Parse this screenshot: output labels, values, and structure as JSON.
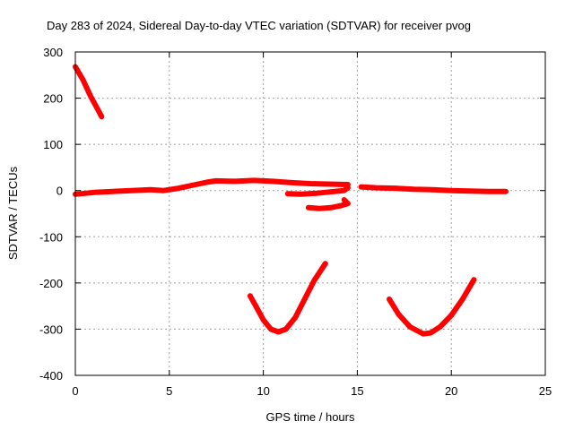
{
  "chart_data": {
    "type": "line",
    "title": "Day 283 of 2024, Sidereal Day-to-day VTEC variation (SDTVAR) for receiver pvog",
    "xlabel": "GPS time / hours",
    "ylabel": "SDTVAR / TECUs",
    "xlim": [
      0,
      25
    ],
    "ylim": [
      -400,
      300
    ],
    "xticks": [
      0,
      5,
      10,
      15,
      20,
      25
    ],
    "yticks": [
      -400,
      -300,
      -200,
      -100,
      0,
      100,
      200,
      300
    ],
    "xtick_labels": [
      "0",
      "5",
      "10",
      "15",
      "20",
      "25"
    ],
    "ytick_labels": [
      "-400",
      "-300",
      "-200",
      "-100",
      "0",
      "100",
      "200",
      "300"
    ],
    "grid": true,
    "series_color": "#ff0000",
    "series": [
      {
        "name": "segment-1",
        "points": [
          [
            0.0,
            268
          ],
          [
            0.4,
            240
          ],
          [
            0.8,
            205
          ],
          [
            1.2,
            175
          ],
          [
            1.4,
            160
          ]
        ]
      },
      {
        "name": "segment-2",
        "points": [
          [
            0.0,
            -8
          ],
          [
            1,
            -4
          ],
          [
            2,
            -2
          ],
          [
            3,
            0
          ],
          [
            4,
            2
          ],
          [
            4.7,
            0
          ],
          [
            5.5,
            5
          ],
          [
            6.3,
            12
          ],
          [
            7,
            18
          ],
          [
            7.5,
            21
          ],
          [
            8.5,
            20
          ],
          [
            9.5,
            22
          ],
          [
            10.5,
            20
          ],
          [
            11.5,
            17
          ],
          [
            12.5,
            15
          ],
          [
            13.5,
            14
          ],
          [
            14.5,
            13
          ]
        ]
      },
      {
        "name": "segment-3",
        "points": [
          [
            11.3,
            -7
          ],
          [
            12,
            -8
          ],
          [
            12.8,
            -6
          ],
          [
            13.5,
            -3
          ],
          [
            14.3,
            0
          ],
          [
            14.5,
            6
          ]
        ]
      },
      {
        "name": "segment-4",
        "points": [
          [
            12.4,
            -37
          ],
          [
            13,
            -39
          ],
          [
            13.6,
            -37
          ],
          [
            14.1,
            -33
          ],
          [
            14.5,
            -28
          ],
          [
            14.3,
            -20
          ]
        ]
      },
      {
        "name": "segment-5",
        "points": [
          [
            15.2,
            8
          ],
          [
            16,
            6
          ],
          [
            17,
            5
          ],
          [
            18,
            3
          ],
          [
            19,
            2
          ],
          [
            20,
            0
          ],
          [
            21,
            -1
          ],
          [
            22,
            -2
          ],
          [
            22.9,
            -2
          ]
        ]
      },
      {
        "name": "segment-6",
        "points": [
          [
            9.3,
            -228
          ],
          [
            9.6,
            -250
          ],
          [
            10,
            -280
          ],
          [
            10.4,
            -300
          ],
          [
            10.8,
            -306
          ],
          [
            11.2,
            -300
          ],
          [
            11.7,
            -275
          ],
          [
            12.2,
            -235
          ],
          [
            12.7,
            -195
          ],
          [
            13.3,
            -158
          ]
        ]
      },
      {
        "name": "segment-7",
        "points": [
          [
            16.7,
            -235
          ],
          [
            17.2,
            -268
          ],
          [
            17.8,
            -295
          ],
          [
            18.5,
            -310
          ],
          [
            18.9,
            -308
          ],
          [
            19.4,
            -295
          ],
          [
            20,
            -270
          ],
          [
            20.6,
            -235
          ],
          [
            21.2,
            -193
          ]
        ]
      }
    ]
  }
}
